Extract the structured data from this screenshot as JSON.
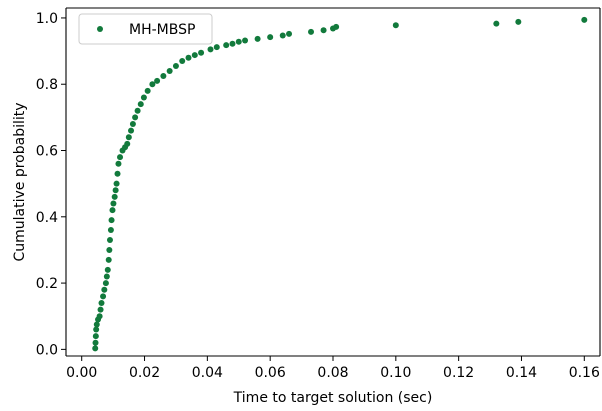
{
  "chart_data": {
    "type": "scatter",
    "title": "",
    "xlabel": "Time to target solution (sec)",
    "ylabel": "Cumulative probability",
    "xlim": [
      -0.005,
      0.165
    ],
    "ylim": [
      -0.02,
      1.03
    ],
    "xticks": [
      "0.00",
      "0.02",
      "0.04",
      "0.06",
      "0.08",
      "0.10",
      "0.12",
      "0.14",
      "0.16"
    ],
    "yticks": [
      "0.0",
      "0.2",
      "0.4",
      "0.6",
      "0.8",
      "1.0"
    ],
    "grid": false,
    "legend": {
      "position": "top-left",
      "entries": [
        "MH-MBSP"
      ]
    },
    "series": [
      {
        "name": "MH-MBSP",
        "color": "#127a3c",
        "marker": "circle",
        "points": [
          [
            0.0043,
            0.003
          ],
          [
            0.0044,
            0.02
          ],
          [
            0.0045,
            0.04
          ],
          [
            0.0046,
            0.06
          ],
          [
            0.0048,
            0.075
          ],
          [
            0.0052,
            0.09
          ],
          [
            0.0057,
            0.1
          ],
          [
            0.006,
            0.12
          ],
          [
            0.0063,
            0.14
          ],
          [
            0.0068,
            0.16
          ],
          [
            0.0072,
            0.18
          ],
          [
            0.0077,
            0.2
          ],
          [
            0.008,
            0.22
          ],
          [
            0.0083,
            0.24
          ],
          [
            0.0086,
            0.27
          ],
          [
            0.0088,
            0.3
          ],
          [
            0.009,
            0.33
          ],
          [
            0.0093,
            0.36
          ],
          [
            0.0095,
            0.39
          ],
          [
            0.0098,
            0.42
          ],
          [
            0.0101,
            0.44
          ],
          [
            0.0105,
            0.46
          ],
          [
            0.0108,
            0.48
          ],
          [
            0.0111,
            0.5
          ],
          [
            0.0114,
            0.53
          ],
          [
            0.0117,
            0.56
          ],
          [
            0.0122,
            0.58
          ],
          [
            0.013,
            0.6
          ],
          [
            0.0138,
            0.61
          ],
          [
            0.0145,
            0.62
          ],
          [
            0.015,
            0.64
          ],
          [
            0.0157,
            0.66
          ],
          [
            0.0163,
            0.68
          ],
          [
            0.017,
            0.7
          ],
          [
            0.0178,
            0.72
          ],
          [
            0.0188,
            0.74
          ],
          [
            0.0198,
            0.76
          ],
          [
            0.021,
            0.78
          ],
          [
            0.0225,
            0.8
          ],
          [
            0.024,
            0.81
          ],
          [
            0.026,
            0.825
          ],
          [
            0.028,
            0.84
          ],
          [
            0.03,
            0.855
          ],
          [
            0.032,
            0.87
          ],
          [
            0.034,
            0.88
          ],
          [
            0.036,
            0.888
          ],
          [
            0.038,
            0.895
          ],
          [
            0.041,
            0.905
          ],
          [
            0.043,
            0.912
          ],
          [
            0.046,
            0.918
          ],
          [
            0.048,
            0.922
          ],
          [
            0.05,
            0.928
          ],
          [
            0.052,
            0.932
          ],
          [
            0.056,
            0.937
          ],
          [
            0.06,
            0.942
          ],
          [
            0.064,
            0.947
          ],
          [
            0.066,
            0.952
          ],
          [
            0.073,
            0.958
          ],
          [
            0.077,
            0.963
          ],
          [
            0.08,
            0.968
          ],
          [
            0.081,
            0.973
          ],
          [
            0.1,
            0.978
          ],
          [
            0.132,
            0.983
          ],
          [
            0.139,
            0.988
          ],
          [
            0.16,
            0.994
          ]
        ]
      }
    ]
  }
}
